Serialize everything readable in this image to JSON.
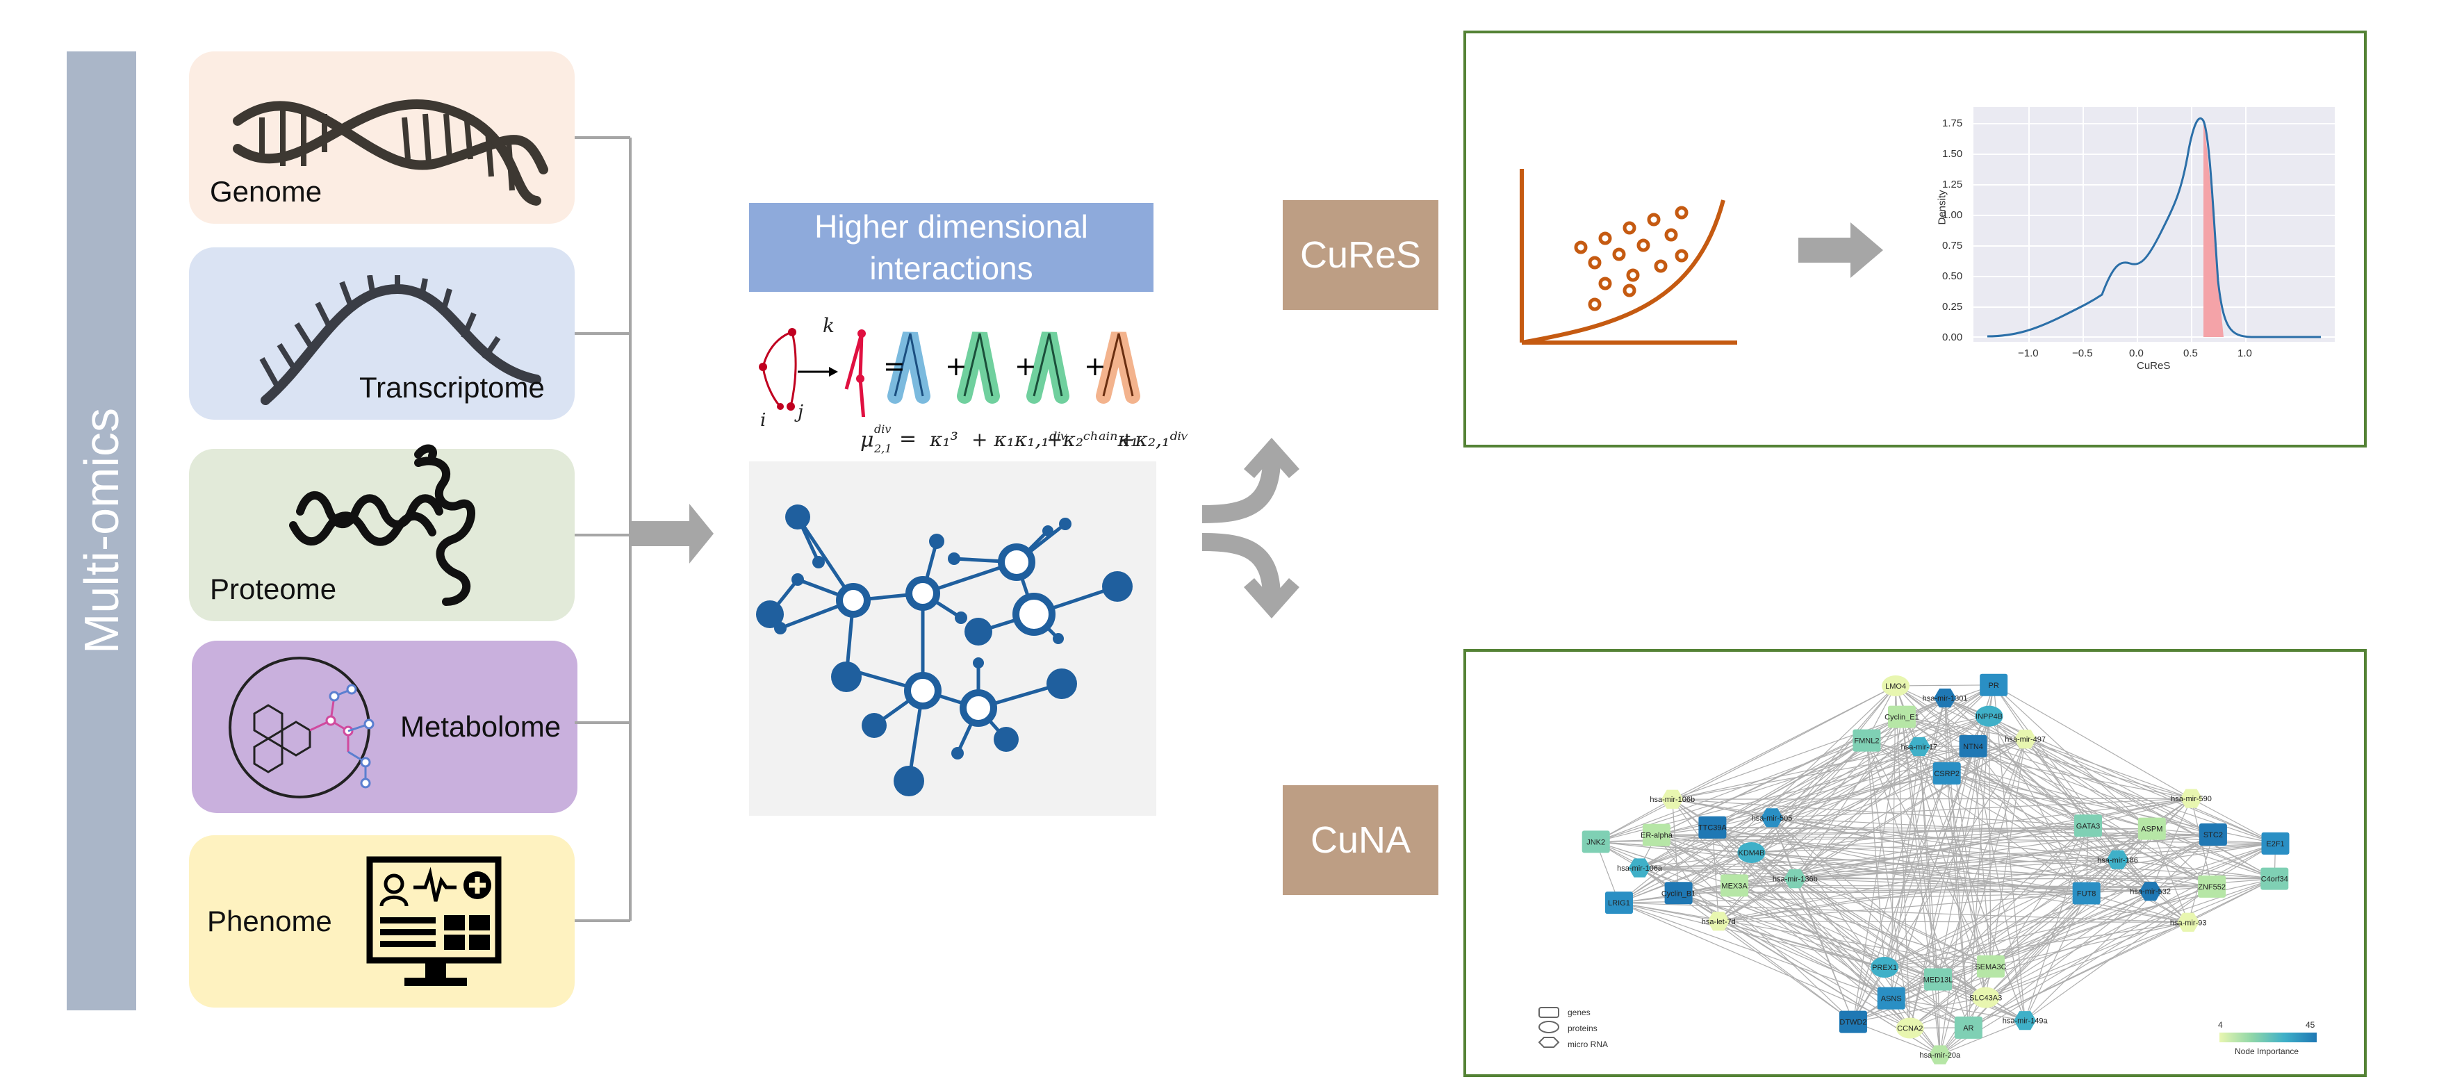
{
  "sidebar": {
    "label": "Multi-omics"
  },
  "omics": [
    {
      "label": "Genome",
      "bg": "#fcede3"
    },
    {
      "label": "Transcriptome",
      "bg": "#dae3f3"
    },
    {
      "label": "Proteome",
      "bg": "#e2ead9"
    },
    {
      "label": "Metabolome",
      "bg": "#c9b0dd"
    },
    {
      "label": "Phenome",
      "bg": "#fef2c0"
    }
  ],
  "hdi": {
    "title": "Higher dimensional interactions"
  },
  "equation": {
    "node_k": "k",
    "node_i": "i",
    "node_j": "j",
    "lhs": "μ",
    "lhs_sub": "2,1",
    "lhs_sup": "div",
    "eq_sign": "=",
    "terms": [
      "κ₁³",
      "+ κ₁κ₁,₁ᵈⁱᵛ",
      "+κ₂ᶜʰᵃⁱⁿκ₁",
      "+κ₂,₁ᵈⁱᵛ"
    ]
  },
  "outputs": {
    "cures_label": "CuReS",
    "cuna_label": "CuNA"
  },
  "colors": {
    "panel_border": "#548235",
    "tag": "#bd9e84",
    "arrow": "#a6a6a6",
    "curve": "#c55a11"
  },
  "cures_plot": {
    "ylabel": "Density",
    "xlabel": "CuReS",
    "yticks": [
      "0.00",
      "0.25",
      "0.50",
      "0.75",
      "1.00",
      "1.25",
      "1.50",
      "1.75"
    ],
    "xticks": [
      "−1.0",
      "−0.5",
      "0.0",
      "0.5",
      "1.0"
    ]
  },
  "cuna": {
    "nodes": [
      "hsa-mir-497",
      "NTN4",
      "CSRP2",
      "hsa-mir-17",
      "FMNL2",
      "Cyclin_E1",
      "LMO4",
      "hsa-mir-1301",
      "PR",
      "INPP4B",
      "hsa-mir-136b",
      "MEX3A",
      "hsa-let-7d",
      "Cyclin_B1",
      "LRIG1",
      "hsa-mir-106a",
      "JNK2",
      "ER-alpha",
      "hsa-mir-106b",
      "TTC39A",
      "hsa-mir-505",
      "KDM4B",
      "C4orf34",
      "ZNF552",
      "hsa-mir-93",
      "hsa-mir-532",
      "FUT8",
      "hsa-mir-186",
      "GATA3",
      "ASPM",
      "hsa-mir-590",
      "STC2",
      "E2F1",
      "hsa-mir-149a",
      "AR",
      "hsa-mir-20a",
      "CCNA2",
      "DTWD2",
      "ASNS",
      "PREX1",
      "MED13L",
      "SEMA3C",
      "SLC43A3"
    ],
    "legend_shapes": [
      "genes",
      "proteins",
      "micro RNA"
    ],
    "colorbar_min": "4",
    "colorbar_max": "45",
    "colorbar_label": "Node Importance"
  }
}
